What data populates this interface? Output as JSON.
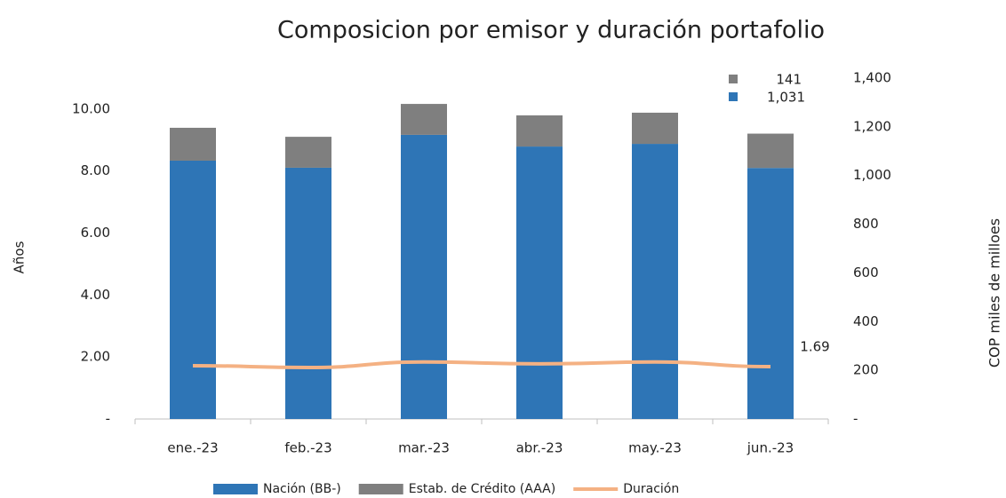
{
  "chart_data": {
    "type": "bar",
    "title": "Composicion por emisor y duración portafolio",
    "y_label": "Años",
    "y2_label": "COP miles de milloes",
    "categories": [
      "ene.-23",
      "feb.-23",
      "mar.-23",
      "abr.-23",
      "may.-23",
      "jun.-23"
    ],
    "series": [
      {
        "name": "Nación (BB-)",
        "color": "#2e75b6",
        "axis": "y2",
        "stacked": true,
        "values": [
          1061,
          1032,
          1167,
          1119,
          1130,
          1031
        ],
        "value_labels": [
          null,
          null,
          null,
          null,
          null,
          "1,031"
        ]
      },
      {
        "name": "Estab. de Crédito (AAA)",
        "color": "#7f7f7f",
        "axis": "y2",
        "stacked": true,
        "values": [
          135,
          127,
          127,
          128,
          128,
          141
        ]
      },
      {
        "name": "Duración",
        "color": "#f4b183",
        "type": "line",
        "values": [
          1.72,
          1.66,
          1.84,
          1.78,
          1.84,
          1.69
        ]
      }
    ],
    "ylim": [
      0,
      11
    ],
    "yticks": [
      {
        "value": 0,
        "label": "-"
      },
      {
        "value": 2,
        "label": "2.00"
      },
      {
        "value": 4,
        "label": "4.00"
      },
      {
        "value": 6,
        "label": "6.00"
      },
      {
        "value": 8,
        "label": "8.00"
      },
      {
        "value": 10,
        "label": "10.00"
      }
    ],
    "y2lim": [
      0,
      1400
    ],
    "y2ticks": [
      {
        "value": 0,
        "label": "-"
      },
      200,
      400,
      600,
      800,
      {
        "value": 1000,
        "label": "1,000"
      },
      {
        "value": 1200,
        "label": "1,200"
      },
      {
        "value": 1400,
        "label": "1,400"
      }
    ],
    "legend": "bottom"
  }
}
